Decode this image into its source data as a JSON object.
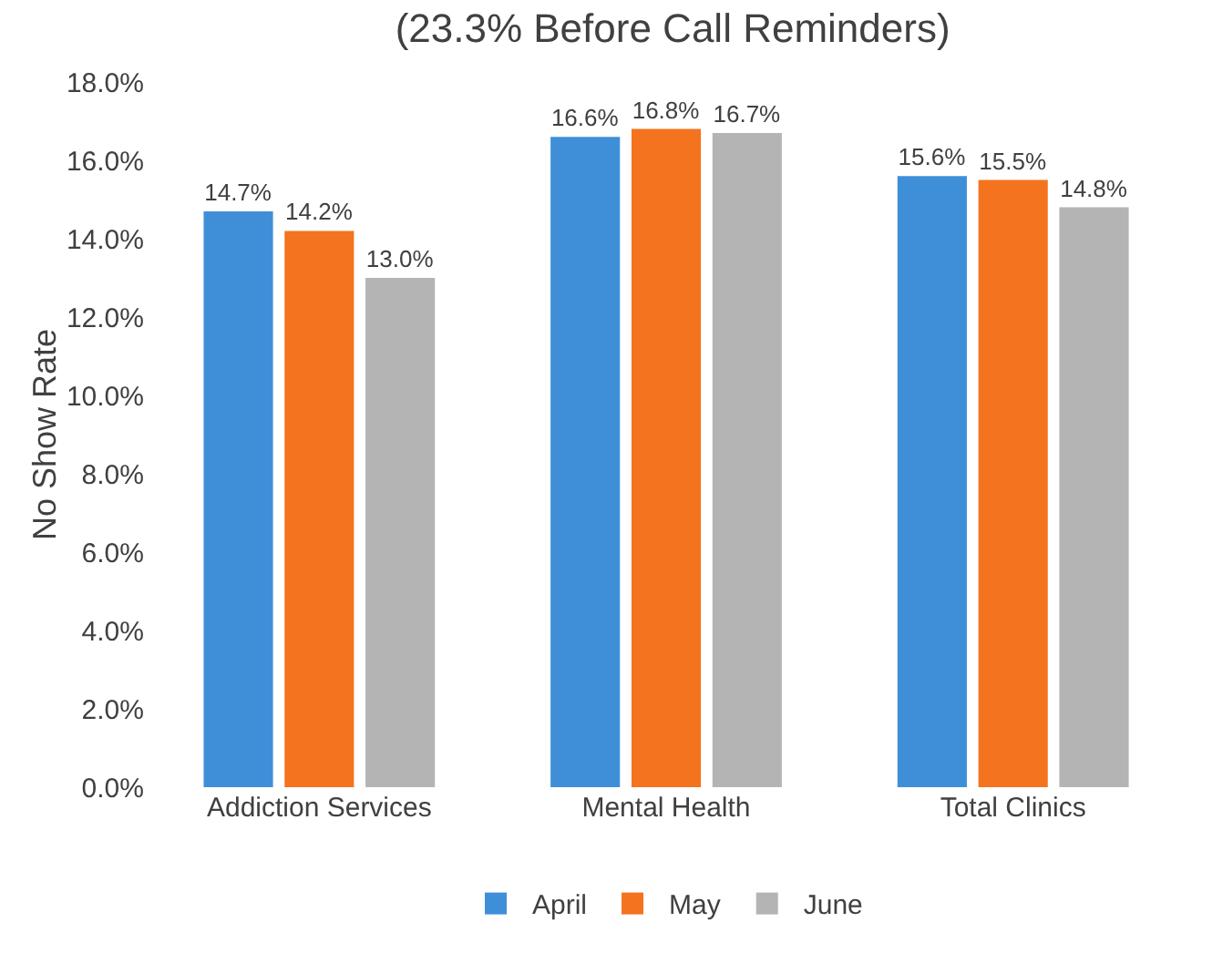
{
  "chart_data": {
    "type": "bar",
    "title": "(23.3% Before Call Reminders)",
    "ylabel": "No Show Rate",
    "categories": [
      "Addiction Services",
      "Mental Health",
      "Total Clinics"
    ],
    "series": [
      {
        "name": "April",
        "color": "#3f8fd8",
        "values": [
          14.7,
          16.6,
          15.6
        ],
        "value_labels": [
          "14.7%",
          "16.6%",
          "15.6%"
        ]
      },
      {
        "name": "May",
        "color": "#f4731f",
        "values": [
          14.2,
          16.8,
          15.5
        ],
        "value_labels": [
          "14.2%",
          "16.8%",
          "15.5%"
        ]
      },
      {
        "name": "June",
        "color": "#b4b4b4",
        "values": [
          13.0,
          16.7,
          14.8
        ],
        "value_labels": [
          "13.0%",
          "16.7%",
          "14.8%"
        ]
      }
    ],
    "ylim": [
      0,
      18
    ],
    "yticks": [
      {
        "value": 0,
        "label": "0.0%"
      },
      {
        "value": 2,
        "label": "2.0%"
      },
      {
        "value": 4,
        "label": "4.0%"
      },
      {
        "value": 6,
        "label": "6.0%"
      },
      {
        "value": 8,
        "label": "8.0%"
      },
      {
        "value": 10,
        "label": "10.0%"
      },
      {
        "value": 12,
        "label": "12.0%"
      },
      {
        "value": 14,
        "label": "14.0%"
      },
      {
        "value": 16,
        "label": "16.0%"
      },
      {
        "value": 18,
        "label": "18.0%"
      }
    ],
    "grid": false,
    "legend": "bottom"
  }
}
